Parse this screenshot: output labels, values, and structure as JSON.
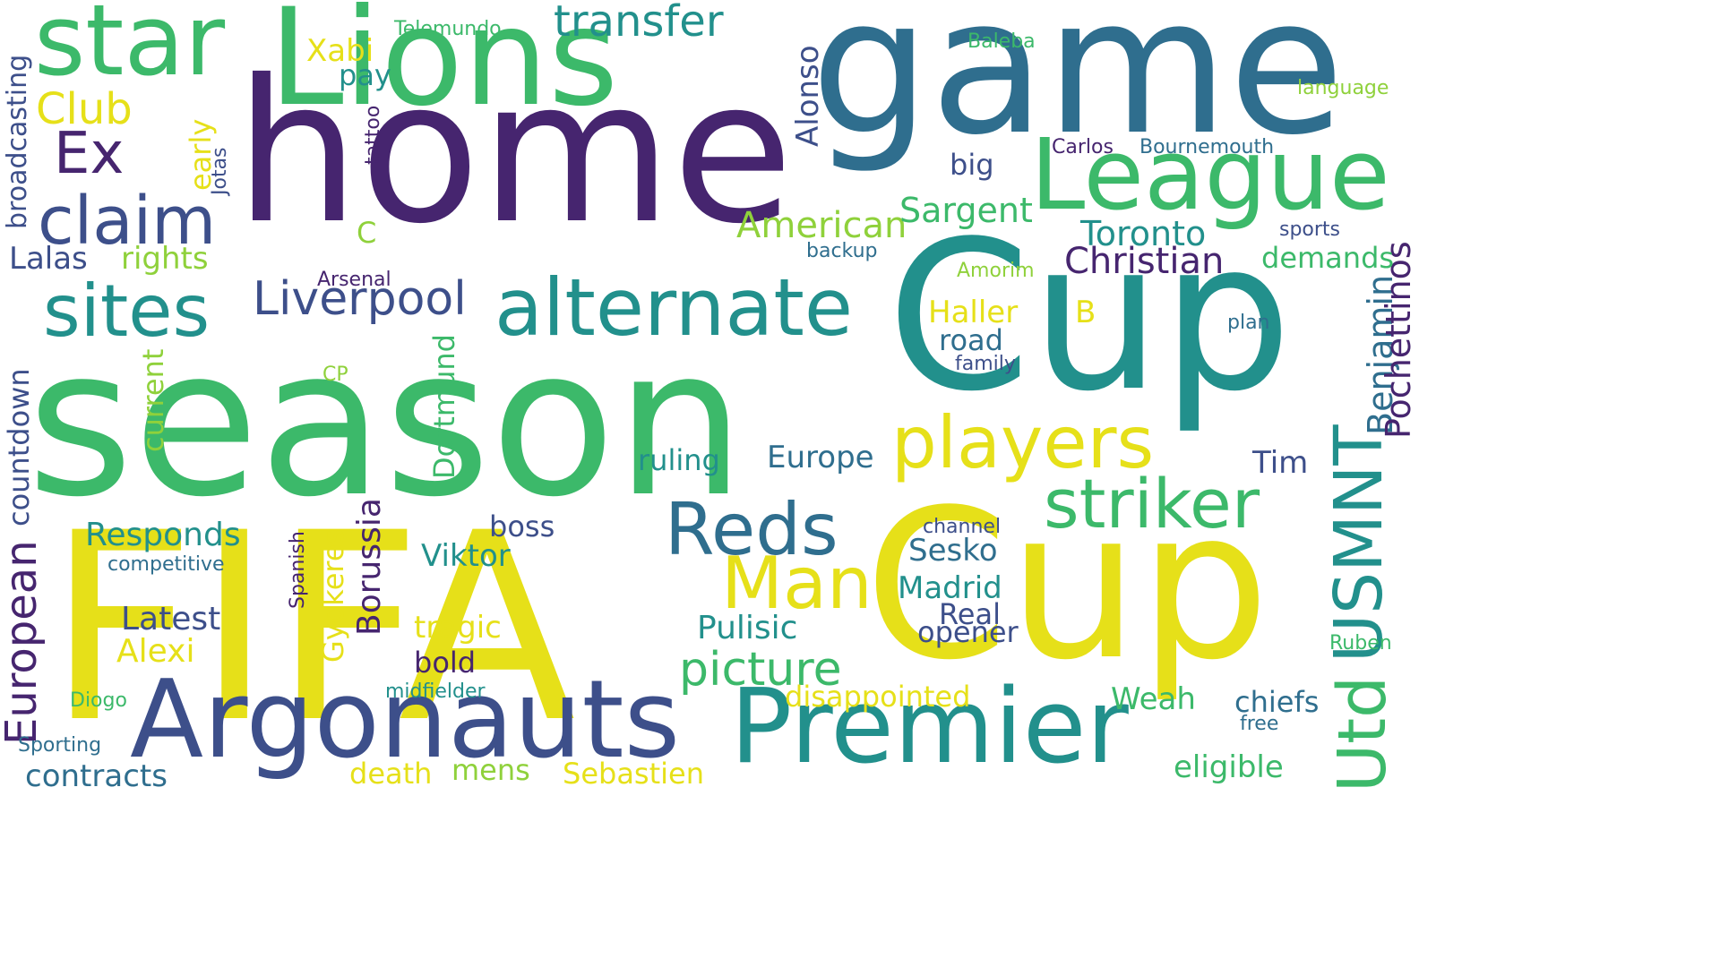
{
  "background": "#ffffff",
  "palette": {
    "purple": "#46256f",
    "indigo": "#3d4f8a",
    "blue": "#2f6e8e",
    "teal": "#22908c",
    "green": "#3cb96a",
    "lime": "#8fd13b",
    "yellow": "#e6e019"
  },
  "words": [
    {
      "text": "season",
      "color": "#3cb96a"
    },
    {
      "text": "FIFA",
      "color": "#e6e019"
    },
    {
      "text": "home",
      "color": "#46256f"
    },
    {
      "text": "game",
      "color": "#2f6e8e"
    },
    {
      "text": "Cup",
      "color": "#22908c"
    },
    {
      "text": "Cup",
      "color": "#e6e019"
    },
    {
      "text": "Lions",
      "color": "#3cb96a"
    },
    {
      "text": "Argonauts",
      "color": "#3d4f8a"
    },
    {
      "text": "Premier",
      "color": "#22908c"
    },
    {
      "text": "League",
      "color": "#3cb96a"
    },
    {
      "text": "star",
      "color": "#3cb96a"
    },
    {
      "text": "alternate",
      "color": "#22908c"
    },
    {
      "text": "players",
      "color": "#e6e019"
    },
    {
      "text": "sites",
      "color": "#22908c"
    },
    {
      "text": "claim",
      "color": "#3d4f8a"
    },
    {
      "text": "Reds",
      "color": "#2f6e8e"
    },
    {
      "text": "Man",
      "color": "#e6e019"
    },
    {
      "text": "striker",
      "color": "#3cb96a"
    },
    {
      "text": "USMNT",
      "color": "#22908c"
    },
    {
      "text": "Utd",
      "color": "#3cb96a"
    },
    {
      "text": "Ex",
      "color": "#46256f"
    },
    {
      "text": "picture",
      "color": "#3cb96a"
    },
    {
      "text": "Liverpool",
      "color": "#3d4f8a"
    },
    {
      "text": "transfer",
      "color": "#22908c"
    },
    {
      "text": "European",
      "color": "#46256f"
    },
    {
      "text": "Club",
      "color": "#e6e019"
    },
    {
      "text": "American",
      "color": "#8fd13b"
    },
    {
      "text": "Christian",
      "color": "#46256f"
    },
    {
      "text": "Sargent",
      "color": "#3cb96a"
    },
    {
      "text": "Toronto",
      "color": "#22908c"
    },
    {
      "text": "Benjamin",
      "color": "#2f6e8e"
    },
    {
      "text": "Pochettinos",
      "color": "#46256f"
    },
    {
      "text": "countdown",
      "color": "#3d4f8a"
    },
    {
      "text": "current",
      "color": "#8fd13b"
    },
    {
      "text": "Dortmund",
      "color": "#3cb96a"
    },
    {
      "text": "Borussia",
      "color": "#46256f"
    },
    {
      "text": "Gyokeres",
      "color": "#e6e019"
    },
    {
      "text": "Responds",
      "color": "#22908c"
    },
    {
      "text": "Latest",
      "color": "#3d4f8a"
    },
    {
      "text": "Alexi",
      "color": "#e6e019"
    },
    {
      "text": "Lalas",
      "color": "#3d4f8a"
    },
    {
      "text": "rights",
      "color": "#8fd13b"
    },
    {
      "text": "broadcasting",
      "color": "#3d4f8a"
    },
    {
      "text": "early",
      "color": "#e6e019"
    },
    {
      "text": "Jotas",
      "color": "#3d4f8a"
    },
    {
      "text": "tattoo",
      "color": "#46256f"
    },
    {
      "text": "Xabi",
      "color": "#e6e019"
    },
    {
      "text": "pay",
      "color": "#22908c"
    },
    {
      "text": "Telemundo",
      "color": "#3cb96a"
    },
    {
      "text": "Alonso",
      "color": "#3d4f8a"
    },
    {
      "text": "big",
      "color": "#3d4f8a"
    },
    {
      "text": "Carlos",
      "color": "#46256f"
    },
    {
      "text": "Bournemouth",
      "color": "#2f6e8e"
    },
    {
      "text": "Baleba",
      "color": "#3cb96a"
    },
    {
      "text": "language",
      "color": "#8fd13b"
    },
    {
      "text": "sports",
      "color": "#3d4f8a"
    },
    {
      "text": "demands",
      "color": "#3cb96a"
    },
    {
      "text": "backup",
      "color": "#2f6e8e"
    },
    {
      "text": "Amorim",
      "color": "#8fd13b"
    },
    {
      "text": "Arsenal",
      "color": "#46256f"
    },
    {
      "text": "Haller",
      "color": "#e6e019"
    },
    {
      "text": "B",
      "color": "#e6e019"
    },
    {
      "text": "road",
      "color": "#2f6e8e"
    },
    {
      "text": "family",
      "color": "#3d4f8a"
    },
    {
      "text": "plan",
      "color": "#2f6e8e"
    },
    {
      "text": "CP",
      "color": "#8fd13b"
    },
    {
      "text": "C",
      "color": "#8fd13b"
    },
    {
      "text": "Tim",
      "color": "#3d4f8a"
    },
    {
      "text": "ruling",
      "color": "#22908c"
    },
    {
      "text": "Europe",
      "color": "#2f6e8e"
    },
    {
      "text": "boss",
      "color": "#3d4f8a"
    },
    {
      "text": "Viktor",
      "color": "#22908c"
    },
    {
      "text": "competitive",
      "color": "#2f6e8e"
    },
    {
      "text": "Spanish",
      "color": "#46256f"
    },
    {
      "text": "Sesko",
      "color": "#2f6e8e"
    },
    {
      "text": "Madrid",
      "color": "#22908c"
    },
    {
      "text": "Real",
      "color": "#3d4f8a"
    },
    {
      "text": "opener",
      "color": "#3d4f8a"
    },
    {
      "text": "channel",
      "color": "#3d4f8a"
    },
    {
      "text": "Pulisic",
      "color": "#22908c"
    },
    {
      "text": "tragic",
      "color": "#e6e019"
    },
    {
      "text": "bold",
      "color": "#46256f"
    },
    {
      "text": "disappointed",
      "color": "#e6e019"
    },
    {
      "text": "Weah",
      "color": "#3cb96a"
    },
    {
      "text": "chiefs",
      "color": "#2f6e8e"
    },
    {
      "text": "free",
      "color": "#2f6e8e"
    },
    {
      "text": "Ruben",
      "color": "#3cb96a"
    },
    {
      "text": "eligible",
      "color": "#3cb96a"
    },
    {
      "text": "Sebastien",
      "color": "#e6e019"
    },
    {
      "text": "mens",
      "color": "#8fd13b"
    },
    {
      "text": "death",
      "color": "#e6e019"
    },
    {
      "text": "midfielder",
      "color": "#22908c"
    },
    {
      "text": "Diogo",
      "color": "#3cb96a"
    },
    {
      "text": "Sporting",
      "color": "#2f6e8e"
    },
    {
      "text": "contracts",
      "color": "#2f6e8e"
    }
  ]
}
